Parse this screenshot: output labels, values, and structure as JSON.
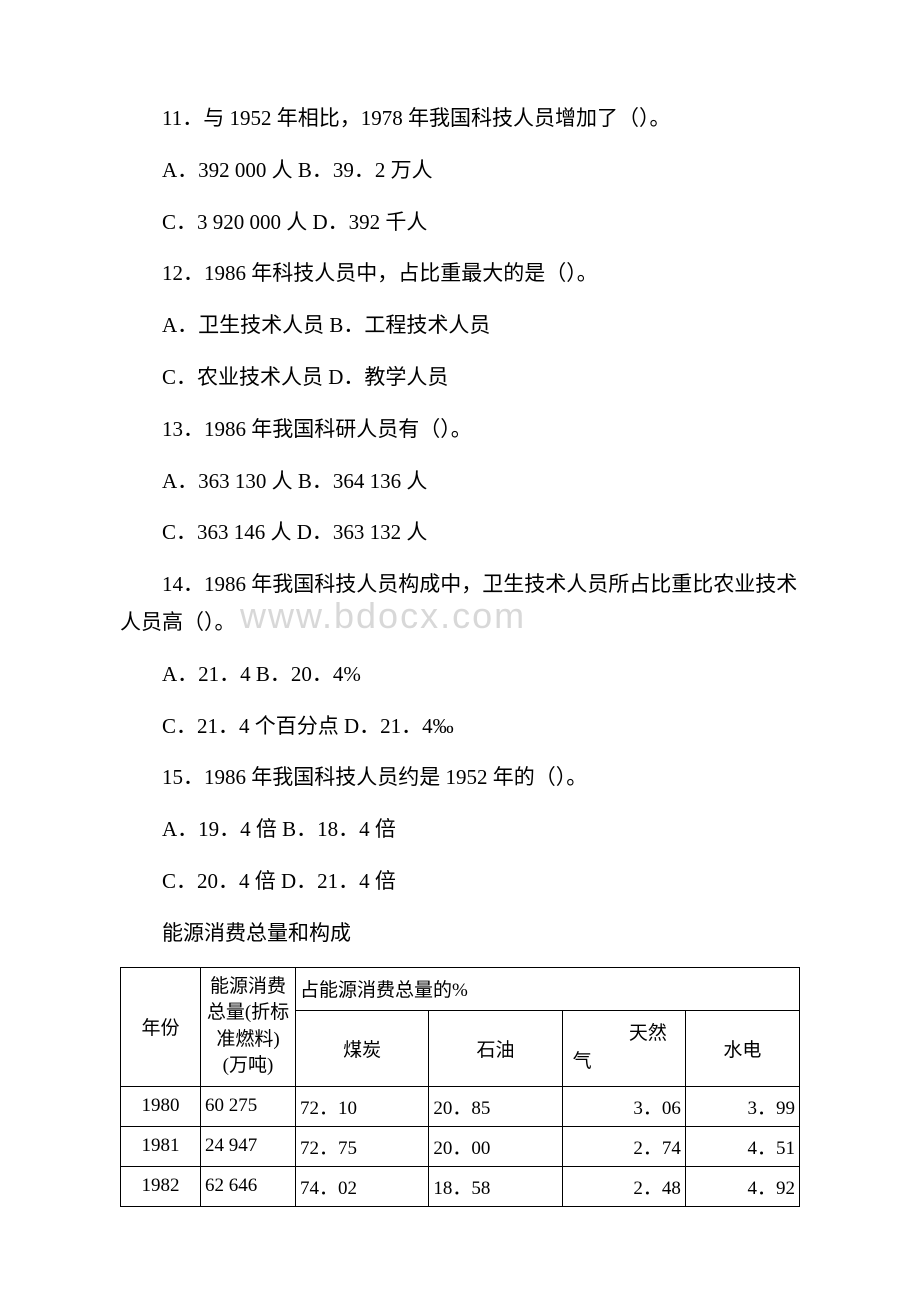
{
  "watermark": "www.bdocx.com",
  "q11": {
    "text": "11．与 1952 年相比，1978 年我国科技人员增加了（）。",
    "optAB": "A．392 000 人 B．39．2 万人",
    "optCD": "C．3 920 000 人 D．392 千人"
  },
  "q12": {
    "text": "12．1986 年科技人员中，占比重最大的是（）。",
    "optAB": "A．卫生技术人员 B．工程技术人员",
    "optCD": "C．农业技术人员 D．教学人员"
  },
  "q13": {
    "text": "13．1986 年我国科研人员有（）。",
    "optAB": "A．363 130 人 B．364 136 人",
    "optCD": "C．363 146 人 D．363 132 人"
  },
  "q14": {
    "text": "14．1986 年我国科技人员构成中，卫生技术人员所占比重比农业技术人员高（）。",
    "optAB": "A．21．4 B．20．4%",
    "optCD": "C．21．4 个百分点 D．21．4‰"
  },
  "q15": {
    "text": "15．1986 年我国科技人员约是 1952 年的（）。",
    "optAB": "A．19．4 倍 B．18．4 倍",
    "optCD": "C．20．4 倍 D．21．4 倍"
  },
  "table_title": "能源消费总量和构成",
  "table": {
    "header_year": "年份",
    "header_total": "能源消费总量(折标准燃料)(万吨)",
    "header_percent": "占能源消费总量的%",
    "col_coal": "煤炭",
    "col_oil": "石油",
    "col_gas_top": "天然",
    "col_gas_bottom": "气",
    "col_hydro": "水电",
    "rows": [
      {
        "year": "1980",
        "total": "60 275",
        "coal": "72．10",
        "oil": "20．85",
        "gas": "3．06",
        "hydro": "3．99"
      },
      {
        "year": "1981",
        "total": "24 947",
        "coal": "72．75",
        "oil": "20．00",
        "gas": "2．74",
        "hydro": "4．51"
      },
      {
        "year": "1982",
        "total": "62 646",
        "coal": "74．02",
        "oil": "18．58",
        "gas": "2．48",
        "hydro": "4．92"
      }
    ]
  }
}
